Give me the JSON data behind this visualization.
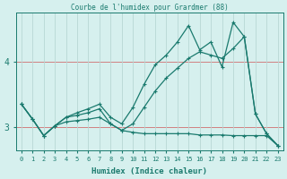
{
  "title": "Courbe de l'humidex pour Grardmer (88)",
  "xlabel": "Humidex (Indice chaleur)",
  "bg_color": "#d6f0ee",
  "line_color": "#1a7a6e",
  "grid_color": "#b8d8d4",
  "xlim": [
    -0.5,
    23.5
  ],
  "ylim": [
    2.65,
    4.75
  ],
  "xticks": [
    0,
    1,
    2,
    3,
    4,
    5,
    6,
    7,
    8,
    9,
    10,
    11,
    12,
    13,
    14,
    15,
    16,
    17,
    18,
    19,
    20,
    21,
    22,
    23
  ],
  "yticks": [
    3,
    4
  ],
  "series": [
    {
      "x": [
        0,
        1,
        2,
        3,
        4,
        5,
        6,
        7,
        8,
        9,
        10,
        11,
        12,
        13,
        14,
        15,
        16,
        17,
        18,
        19,
        20,
        21,
        22,
        23
      ],
      "y": [
        3.35,
        3.12,
        2.87,
        3.02,
        3.08,
        3.1,
        3.12,
        3.15,
        3.05,
        2.95,
        2.92,
        2.9,
        2.9,
        2.9,
        2.9,
        2.9,
        2.88,
        2.88,
        2.88,
        2.87,
        2.87,
        2.87,
        2.87,
        2.72
      ]
    },
    {
      "x": [
        0,
        1,
        2,
        3,
        4,
        5,
        6,
        7,
        8,
        9,
        10,
        11,
        12,
        13,
        14,
        15,
        16,
        17,
        18,
        19,
        20,
        21,
        22,
        23
      ],
      "y": [
        3.35,
        3.12,
        2.87,
        3.02,
        3.15,
        3.18,
        3.22,
        3.28,
        3.05,
        2.95,
        3.05,
        3.3,
        3.55,
        3.75,
        3.9,
        4.05,
        4.15,
        4.1,
        4.05,
        4.2,
        4.38,
        3.2,
        2.9,
        2.72
      ]
    },
    {
      "x": [
        0,
        1,
        2,
        3,
        4,
        5,
        6,
        7,
        8,
        9,
        10,
        11,
        12,
        13,
        14,
        15,
        16,
        17,
        18,
        19,
        20,
        21,
        22,
        23
      ],
      "y": [
        3.35,
        3.12,
        2.87,
        3.02,
        3.15,
        3.22,
        3.28,
        3.35,
        3.15,
        3.05,
        3.3,
        3.65,
        3.95,
        4.1,
        4.3,
        4.55,
        4.18,
        4.3,
        3.92,
        4.6,
        4.38,
        3.2,
        2.9,
        2.72
      ]
    }
  ]
}
